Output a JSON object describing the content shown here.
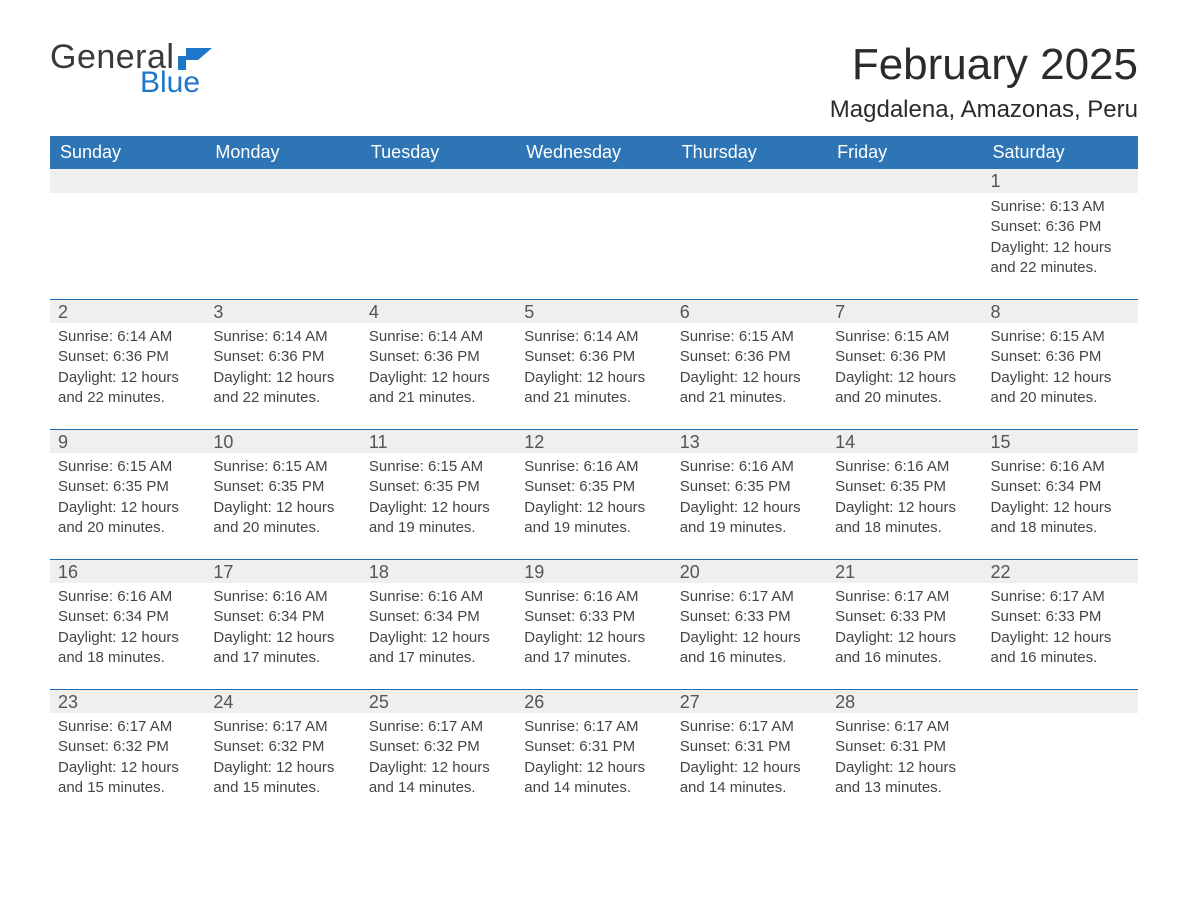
{
  "logo": {
    "word1": "General",
    "word2": "Blue"
  },
  "header": {
    "title": "February 2025",
    "location": "Magdalena, Amazonas, Peru"
  },
  "calendar": {
    "type": "table",
    "header_bg": "#2e75b6",
    "header_text_color": "#ffffff",
    "daynum_bg": "#efefef",
    "row_divider_color": "#1f6fb2",
    "background_color": "#ffffff",
    "text_color": "#333333",
    "columns": [
      "Sunday",
      "Monday",
      "Tuesday",
      "Wednesday",
      "Thursday",
      "Friday",
      "Saturday"
    ],
    "weeks": [
      [
        null,
        null,
        null,
        null,
        null,
        null,
        {
          "n": "1",
          "sunrise": "Sunrise: 6:13 AM",
          "sunset": "Sunset: 6:36 PM",
          "d1": "Daylight: 12 hours",
          "d2": "and 22 minutes."
        }
      ],
      [
        {
          "n": "2",
          "sunrise": "Sunrise: 6:14 AM",
          "sunset": "Sunset: 6:36 PM",
          "d1": "Daylight: 12 hours",
          "d2": "and 22 minutes."
        },
        {
          "n": "3",
          "sunrise": "Sunrise: 6:14 AM",
          "sunset": "Sunset: 6:36 PM",
          "d1": "Daylight: 12 hours",
          "d2": "and 22 minutes."
        },
        {
          "n": "4",
          "sunrise": "Sunrise: 6:14 AM",
          "sunset": "Sunset: 6:36 PM",
          "d1": "Daylight: 12 hours",
          "d2": "and 21 minutes."
        },
        {
          "n": "5",
          "sunrise": "Sunrise: 6:14 AM",
          "sunset": "Sunset: 6:36 PM",
          "d1": "Daylight: 12 hours",
          "d2": "and 21 minutes."
        },
        {
          "n": "6",
          "sunrise": "Sunrise: 6:15 AM",
          "sunset": "Sunset: 6:36 PM",
          "d1": "Daylight: 12 hours",
          "d2": "and 21 minutes."
        },
        {
          "n": "7",
          "sunrise": "Sunrise: 6:15 AM",
          "sunset": "Sunset: 6:36 PM",
          "d1": "Daylight: 12 hours",
          "d2": "and 20 minutes."
        },
        {
          "n": "8",
          "sunrise": "Sunrise: 6:15 AM",
          "sunset": "Sunset: 6:36 PM",
          "d1": "Daylight: 12 hours",
          "d2": "and 20 minutes."
        }
      ],
      [
        {
          "n": "9",
          "sunrise": "Sunrise: 6:15 AM",
          "sunset": "Sunset: 6:35 PM",
          "d1": "Daylight: 12 hours",
          "d2": "and 20 minutes."
        },
        {
          "n": "10",
          "sunrise": "Sunrise: 6:15 AM",
          "sunset": "Sunset: 6:35 PM",
          "d1": "Daylight: 12 hours",
          "d2": "and 20 minutes."
        },
        {
          "n": "11",
          "sunrise": "Sunrise: 6:15 AM",
          "sunset": "Sunset: 6:35 PM",
          "d1": "Daylight: 12 hours",
          "d2": "and 19 minutes."
        },
        {
          "n": "12",
          "sunrise": "Sunrise: 6:16 AM",
          "sunset": "Sunset: 6:35 PM",
          "d1": "Daylight: 12 hours",
          "d2": "and 19 minutes."
        },
        {
          "n": "13",
          "sunrise": "Sunrise: 6:16 AM",
          "sunset": "Sunset: 6:35 PM",
          "d1": "Daylight: 12 hours",
          "d2": "and 19 minutes."
        },
        {
          "n": "14",
          "sunrise": "Sunrise: 6:16 AM",
          "sunset": "Sunset: 6:35 PM",
          "d1": "Daylight: 12 hours",
          "d2": "and 18 minutes."
        },
        {
          "n": "15",
          "sunrise": "Sunrise: 6:16 AM",
          "sunset": "Sunset: 6:34 PM",
          "d1": "Daylight: 12 hours",
          "d2": "and 18 minutes."
        }
      ],
      [
        {
          "n": "16",
          "sunrise": "Sunrise: 6:16 AM",
          "sunset": "Sunset: 6:34 PM",
          "d1": "Daylight: 12 hours",
          "d2": "and 18 minutes."
        },
        {
          "n": "17",
          "sunrise": "Sunrise: 6:16 AM",
          "sunset": "Sunset: 6:34 PM",
          "d1": "Daylight: 12 hours",
          "d2": "and 17 minutes."
        },
        {
          "n": "18",
          "sunrise": "Sunrise: 6:16 AM",
          "sunset": "Sunset: 6:34 PM",
          "d1": "Daylight: 12 hours",
          "d2": "and 17 minutes."
        },
        {
          "n": "19",
          "sunrise": "Sunrise: 6:16 AM",
          "sunset": "Sunset: 6:33 PM",
          "d1": "Daylight: 12 hours",
          "d2": "and 17 minutes."
        },
        {
          "n": "20",
          "sunrise": "Sunrise: 6:17 AM",
          "sunset": "Sunset: 6:33 PM",
          "d1": "Daylight: 12 hours",
          "d2": "and 16 minutes."
        },
        {
          "n": "21",
          "sunrise": "Sunrise: 6:17 AM",
          "sunset": "Sunset: 6:33 PM",
          "d1": "Daylight: 12 hours",
          "d2": "and 16 minutes."
        },
        {
          "n": "22",
          "sunrise": "Sunrise: 6:17 AM",
          "sunset": "Sunset: 6:33 PM",
          "d1": "Daylight: 12 hours",
          "d2": "and 16 minutes."
        }
      ],
      [
        {
          "n": "23",
          "sunrise": "Sunrise: 6:17 AM",
          "sunset": "Sunset: 6:32 PM",
          "d1": "Daylight: 12 hours",
          "d2": "and 15 minutes."
        },
        {
          "n": "24",
          "sunrise": "Sunrise: 6:17 AM",
          "sunset": "Sunset: 6:32 PM",
          "d1": "Daylight: 12 hours",
          "d2": "and 15 minutes."
        },
        {
          "n": "25",
          "sunrise": "Sunrise: 6:17 AM",
          "sunset": "Sunset: 6:32 PM",
          "d1": "Daylight: 12 hours",
          "d2": "and 14 minutes."
        },
        {
          "n": "26",
          "sunrise": "Sunrise: 6:17 AM",
          "sunset": "Sunset: 6:31 PM",
          "d1": "Daylight: 12 hours",
          "d2": "and 14 minutes."
        },
        {
          "n": "27",
          "sunrise": "Sunrise: 6:17 AM",
          "sunset": "Sunset: 6:31 PM",
          "d1": "Daylight: 12 hours",
          "d2": "and 14 minutes."
        },
        {
          "n": "28",
          "sunrise": "Sunrise: 6:17 AM",
          "sunset": "Sunset: 6:31 PM",
          "d1": "Daylight: 12 hours",
          "d2": "and 13 minutes."
        },
        null
      ]
    ]
  }
}
